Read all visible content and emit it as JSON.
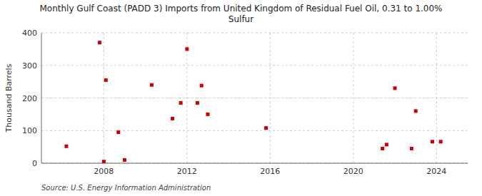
{
  "chart_data": {
    "type": "scatter",
    "title": "Monthly Gulf Coast (PADD 3) Imports from United Kingdom of Residual Fuel Oil, 0.31 to 1.00%\nSulfur",
    "ylabel": "Thousand Barrels",
    "source": "Source: U.S. Energy Information Administration",
    "x": [
      2006.2,
      2007.8,
      2008.0,
      2008.1,
      2008.7,
      2009.0,
      2010.3,
      2011.3,
      2011.7,
      2012.0,
      2012.5,
      2012.7,
      2013.0,
      2015.8,
      2021.4,
      2021.6,
      2022.0,
      2022.8,
      2023.0,
      2023.8,
      2024.2
    ],
    "values": [
      52,
      370,
      5,
      255,
      95,
      10,
      240,
      137,
      185,
      350,
      185,
      238,
      150,
      108,
      45,
      57,
      230,
      45,
      160,
      66,
      66
    ],
    "color": "#cc0000",
    "marker": "square",
    "xlim": [
      2005.0,
      2025.5
    ],
    "ylim": [
      0,
      400
    ],
    "xticks": [
      2008,
      2012,
      2016,
      2020,
      2024
    ],
    "yticks": [
      0,
      100,
      200,
      300,
      400
    ],
    "grid": true
  }
}
